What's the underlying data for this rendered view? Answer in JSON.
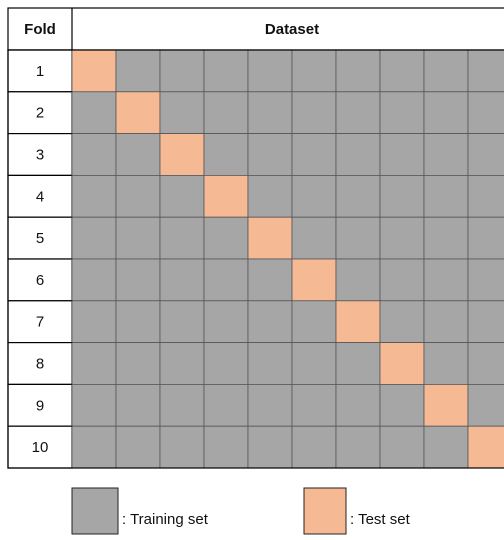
{
  "header": {
    "fold": "Fold",
    "dataset": "Dataset"
  },
  "folds": [
    "1",
    "2",
    "3",
    "4",
    "5",
    "6",
    "7",
    "8",
    "9",
    "10"
  ],
  "legend": {
    "training": ": Training set",
    "test": ": Test set"
  }
}
